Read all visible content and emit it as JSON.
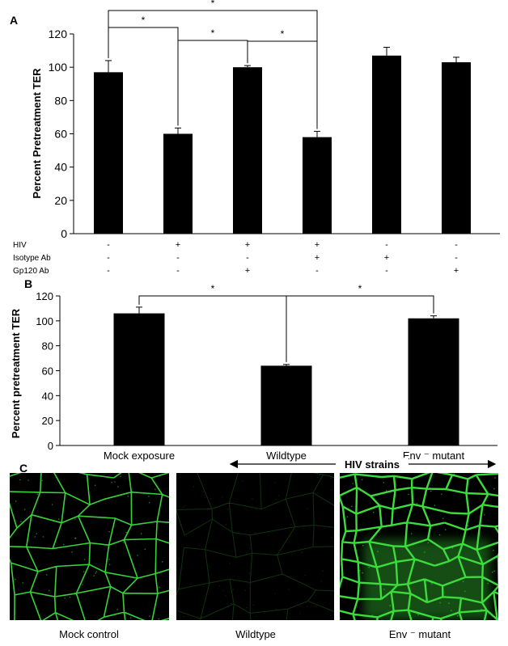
{
  "chart_data": [
    {
      "panel_label": "A",
      "type": "bar",
      "ylabel": "Percent Pretreatment TER",
      "ylim": [
        0,
        120
      ],
      "yticks": [
        "0",
        "20",
        "40",
        "60",
        "80",
        "100",
        "120"
      ],
      "values": [
        97,
        60,
        100,
        58,
        107,
        103
      ],
      "errors": [
        7,
        3.5,
        1,
        3.5,
        5,
        3
      ],
      "condition_rows": [
        {
          "label": "HIV",
          "marks": [
            "-",
            "+",
            "+",
            "+",
            "-",
            "-"
          ]
        },
        {
          "label": "Isotype Ab",
          "marks": [
            "-",
            "-",
            "-",
            "+",
            "+",
            "-"
          ]
        },
        {
          "label": "Gp120 Ab",
          "marks": [
            "-",
            "-",
            "+",
            "-",
            "-",
            "+"
          ]
        }
      ],
      "significance": [
        {
          "from": 0,
          "to": 1,
          "label": "*"
        },
        {
          "from": 0,
          "to": 3,
          "label": "*"
        },
        {
          "from": 1,
          "to": 2,
          "label": "*"
        },
        {
          "from": 2,
          "to": 3,
          "label": "*"
        }
      ],
      "grid": false
    },
    {
      "panel_label": "B",
      "type": "bar",
      "ylabel": "Percent pretreatment TER",
      "ylim": [
        0,
        120
      ],
      "yticks": [
        "0",
        "20",
        "40",
        "60",
        "80",
        "100",
        "120"
      ],
      "categories": [
        "Mock exposure",
        "Wildtype",
        "Env ⁻ mutant"
      ],
      "values": [
        106,
        64,
        102
      ],
      "errors": [
        5,
        1,
        2
      ],
      "significance": [
        {
          "from": 0,
          "to": 1,
          "label": "*"
        },
        {
          "from": 1,
          "to": 2,
          "label": "*"
        }
      ],
      "group_label": "HIV strains",
      "grid": false
    }
  ],
  "panel_c": {
    "label": "C",
    "captions": [
      "Mock control",
      "Wildtype",
      "Env ⁻ mutant"
    ],
    "stain_color": "#3bdc3b"
  }
}
